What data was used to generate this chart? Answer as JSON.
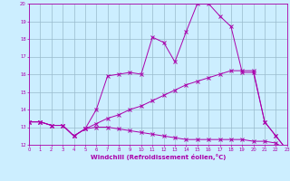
{
  "title": "",
  "xlabel": "Windchill (Refroidissement éolien,°C)",
  "bg_color": "#cceeff",
  "line_color": "#aa00aa",
  "grid_color": "#99bbcc",
  "xmin": 0,
  "xmax": 23,
  "ymin": 12,
  "ymax": 20,
  "line1_x": [
    0,
    1,
    2,
    3,
    4,
    5,
    6,
    7,
    8,
    9,
    10,
    11,
    12,
    13,
    14,
    15,
    16,
    17,
    18,
    19,
    20,
    21,
    22,
    23
  ],
  "line1_y": [
    13.3,
    13.3,
    13.1,
    13.1,
    12.5,
    12.9,
    14.0,
    15.9,
    16.0,
    16.1,
    16.0,
    18.1,
    17.8,
    16.7,
    18.4,
    20.0,
    20.0,
    19.3,
    18.7,
    16.1,
    16.1,
    13.3,
    12.5,
    11.7
  ],
  "line2_x": [
    0,
    1,
    2,
    3,
    4,
    5,
    6,
    7,
    8,
    9,
    10,
    11,
    12,
    13,
    14,
    15,
    16,
    17,
    18,
    19,
    20,
    21,
    22,
    23
  ],
  "line2_y": [
    13.3,
    13.3,
    13.1,
    13.1,
    12.5,
    12.9,
    13.2,
    13.5,
    13.7,
    14.0,
    14.2,
    14.5,
    14.8,
    15.1,
    15.4,
    15.6,
    15.8,
    16.0,
    16.2,
    16.2,
    16.2,
    13.3,
    12.5,
    11.7
  ],
  "line3_x": [
    0,
    1,
    2,
    3,
    4,
    5,
    6,
    7,
    8,
    9,
    10,
    11,
    12,
    13,
    14,
    15,
    16,
    17,
    18,
    19,
    20,
    21,
    22,
    23
  ],
  "line3_y": [
    13.3,
    13.3,
    13.1,
    13.1,
    12.5,
    12.9,
    13.0,
    13.0,
    12.9,
    12.8,
    12.7,
    12.6,
    12.5,
    12.4,
    12.3,
    12.3,
    12.3,
    12.3,
    12.3,
    12.3,
    12.2,
    12.2,
    12.1,
    11.7
  ],
  "xlabel_fontsize": 5.0,
  "tick_fontsize": 3.8
}
